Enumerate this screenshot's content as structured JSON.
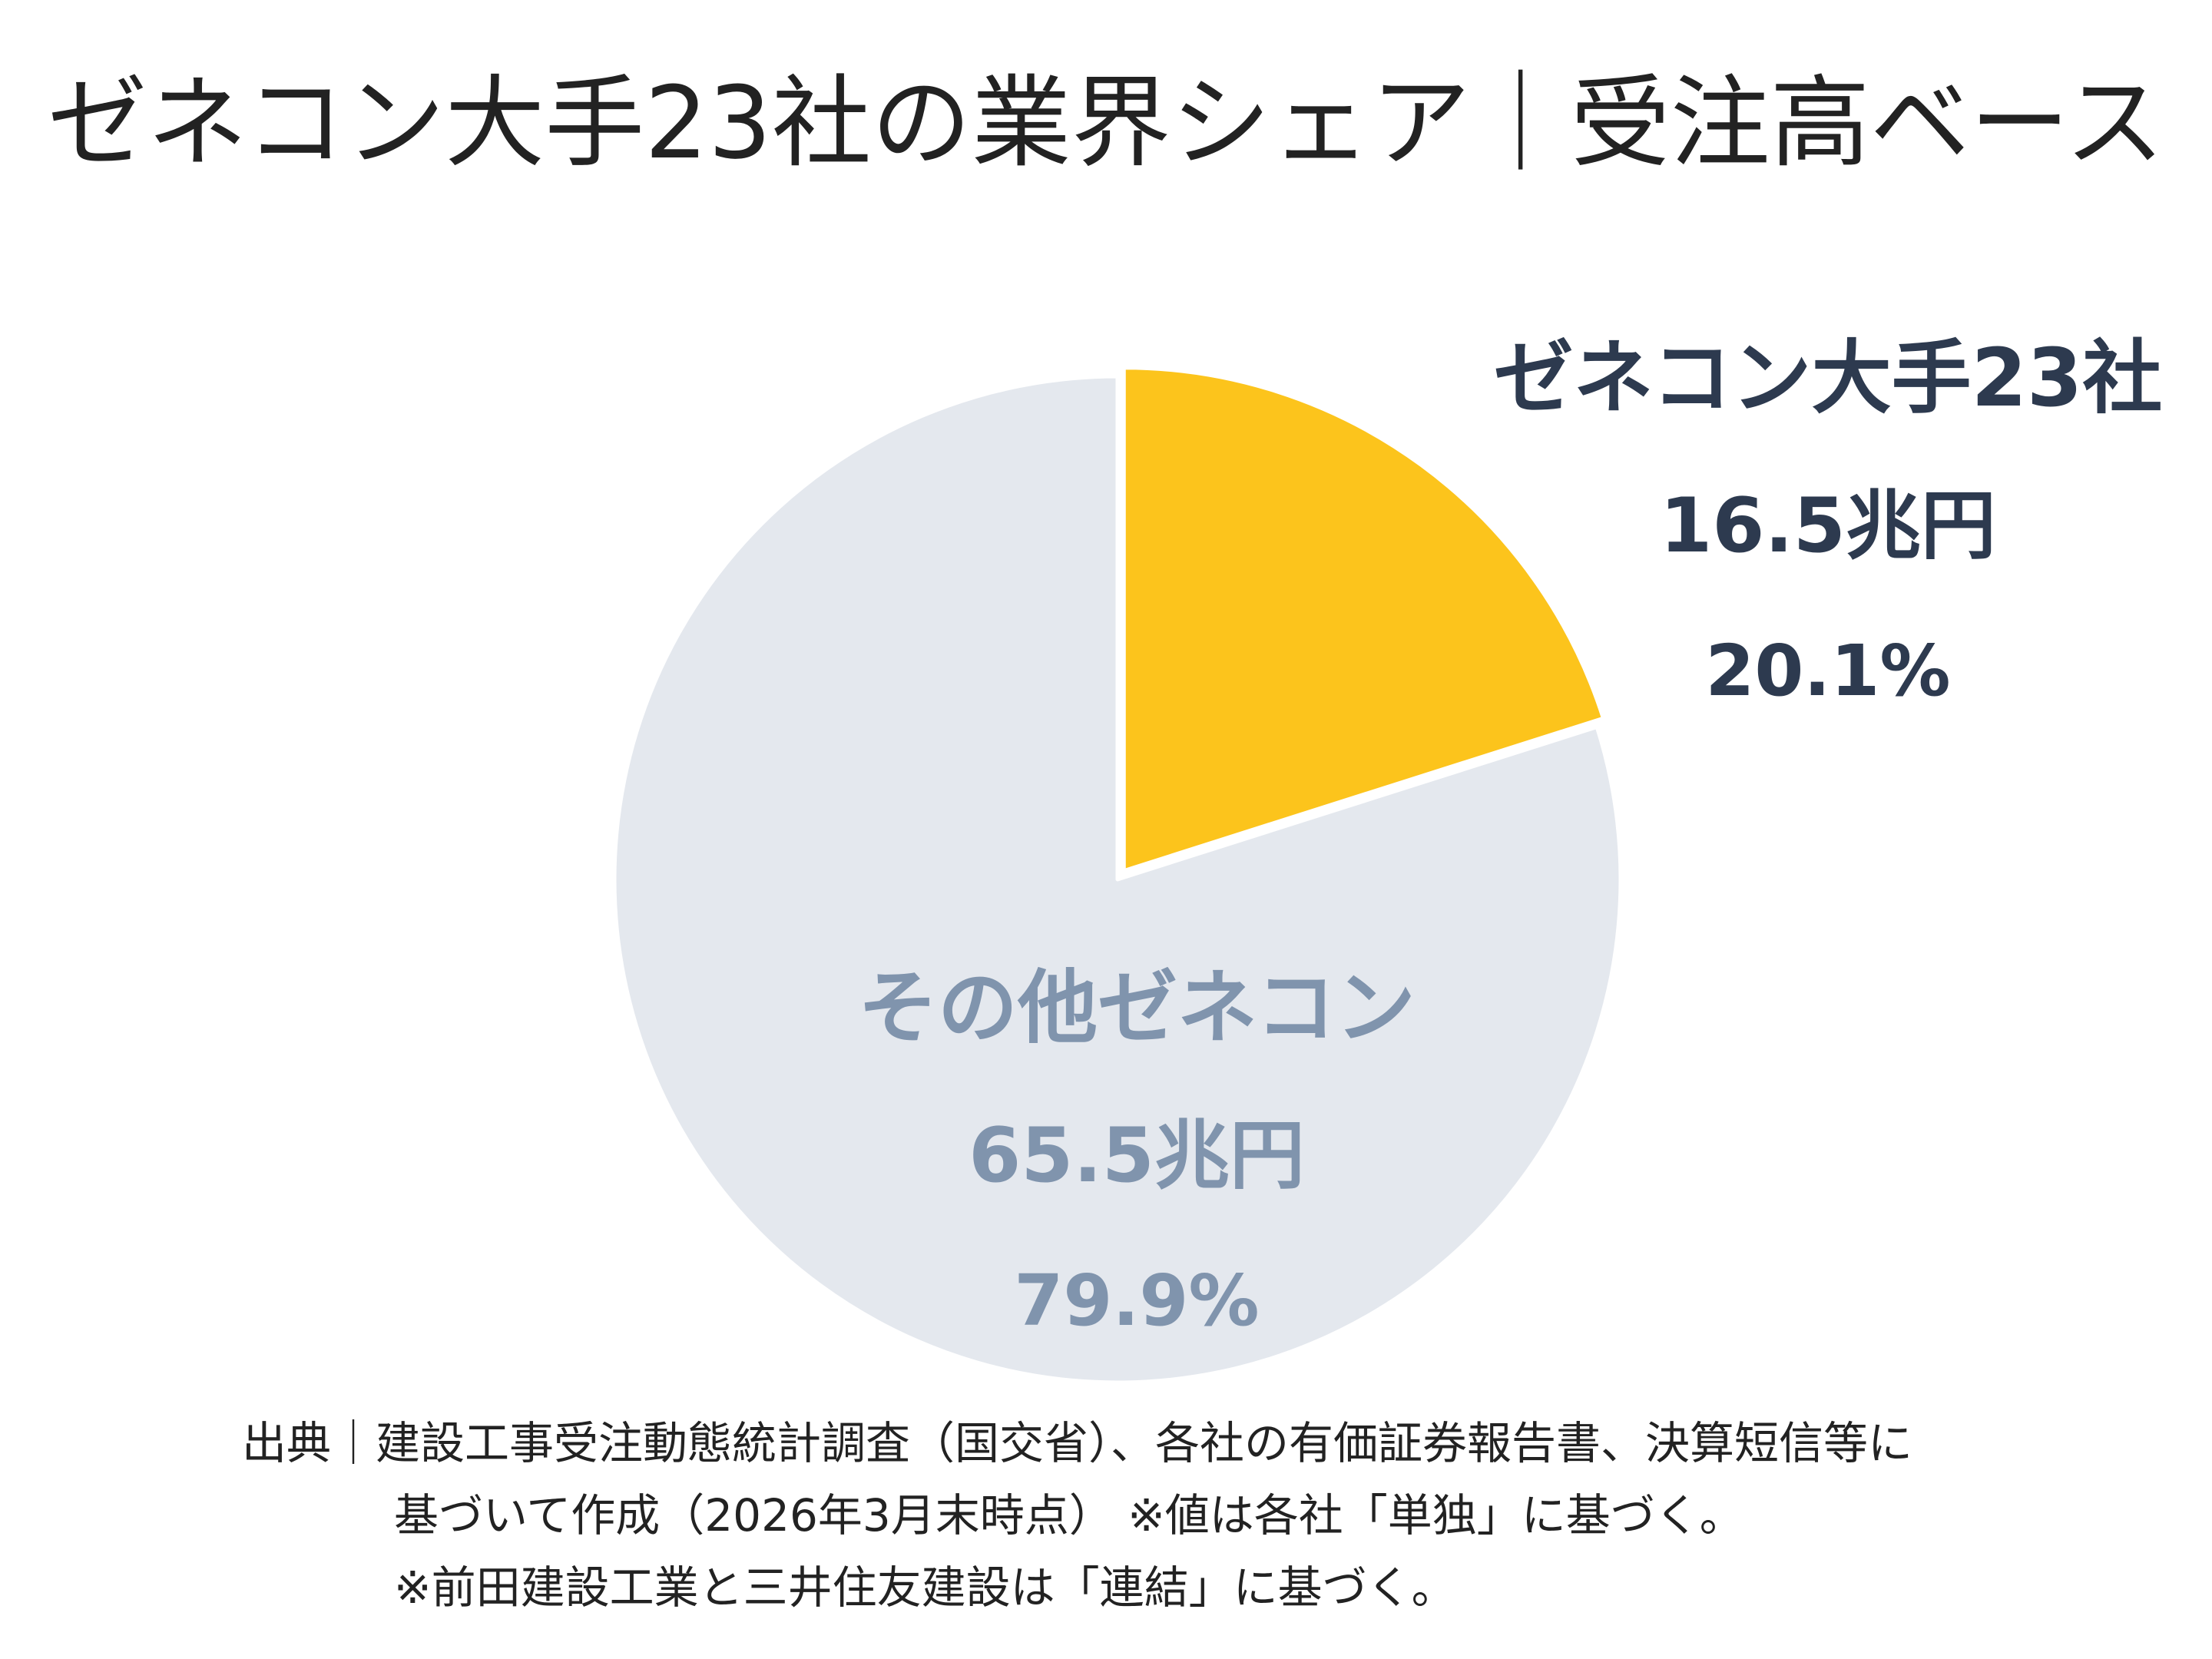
{
  "title": "ゼネコン大手23社の業界シェア｜受注高ベース",
  "colors": {
    "major": "#fcc41c",
    "other": "#e4e8ee",
    "major_text": "#2d3a4f",
    "other_text": "#8094ad"
  },
  "chart_data": {
    "type": "pie",
    "title": "ゼネコン大手23社の業界シェア｜受注高ベース",
    "slices": [
      {
        "name": "ゼネコン大手23社",
        "value_label": "16.5兆円",
        "value": 16.5,
        "percent": 20.1,
        "percent_label": "20.1%"
      },
      {
        "name": "その他ゼネコン",
        "value_label": "65.5兆円",
        "value": 65.5,
        "percent": 79.9,
        "percent_label": "79.9%"
      }
    ]
  },
  "source": {
    "line1": "出典｜建設工事受注動態統計調査（国交省）、各社の有価証券報告書、決算短信等に",
    "line2": "基づいて作成（2026年3月末時点） ※値は各社「単独」に基づく。",
    "line3": "※前田建設工業と三井住友建設は「連結」に基づく。"
  }
}
